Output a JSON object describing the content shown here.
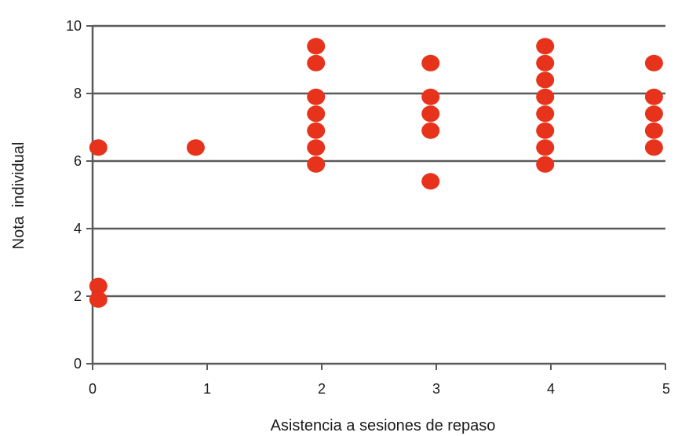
{
  "chart_data": {
    "type": "scatter",
    "title": "",
    "xlabel": "Asistencia a sesiones de repaso",
    "ylabel": "Nota  individual",
    "xlim": [
      0,
      5
    ],
    "ylim": [
      0,
      10
    ],
    "x_ticks": [
      "0",
      "1",
      "2",
      "3",
      "4",
      "5"
    ],
    "y_ticks": [
      "0",
      "2",
      "4",
      "6",
      "8",
      "10"
    ],
    "grid": "horizontal",
    "legend": "none",
    "marker_color": "#e8331c",
    "gridline_color": "#5a5a5a",
    "points": [
      {
        "x": 0.05,
        "y": 6.4
      },
      {
        "x": 0.05,
        "y": 2.3
      },
      {
        "x": 0.05,
        "y": 1.9
      },
      {
        "x": 0.9,
        "y": 6.4
      },
      {
        "x": 1.95,
        "y": 9.4
      },
      {
        "x": 1.95,
        "y": 8.9
      },
      {
        "x": 1.95,
        "y": 7.9
      },
      {
        "x": 1.95,
        "y": 7.4
      },
      {
        "x": 1.95,
        "y": 6.9
      },
      {
        "x": 1.95,
        "y": 6.4
      },
      {
        "x": 1.95,
        "y": 5.9
      },
      {
        "x": 2.95,
        "y": 8.9
      },
      {
        "x": 2.95,
        "y": 7.9
      },
      {
        "x": 2.95,
        "y": 7.4
      },
      {
        "x": 2.95,
        "y": 6.9
      },
      {
        "x": 2.95,
        "y": 5.4
      },
      {
        "x": 3.95,
        "y": 9.4
      },
      {
        "x": 3.95,
        "y": 8.9
      },
      {
        "x": 3.95,
        "y": 8.4
      },
      {
        "x": 3.95,
        "y": 7.9
      },
      {
        "x": 3.95,
        "y": 7.4
      },
      {
        "x": 3.95,
        "y": 6.9
      },
      {
        "x": 3.95,
        "y": 6.4
      },
      {
        "x": 3.95,
        "y": 5.9
      },
      {
        "x": 4.9,
        "y": 8.9
      },
      {
        "x": 4.9,
        "y": 7.9
      },
      {
        "x": 4.9,
        "y": 7.4
      },
      {
        "x": 4.9,
        "y": 6.9
      },
      {
        "x": 4.9,
        "y": 6.4
      }
    ]
  }
}
